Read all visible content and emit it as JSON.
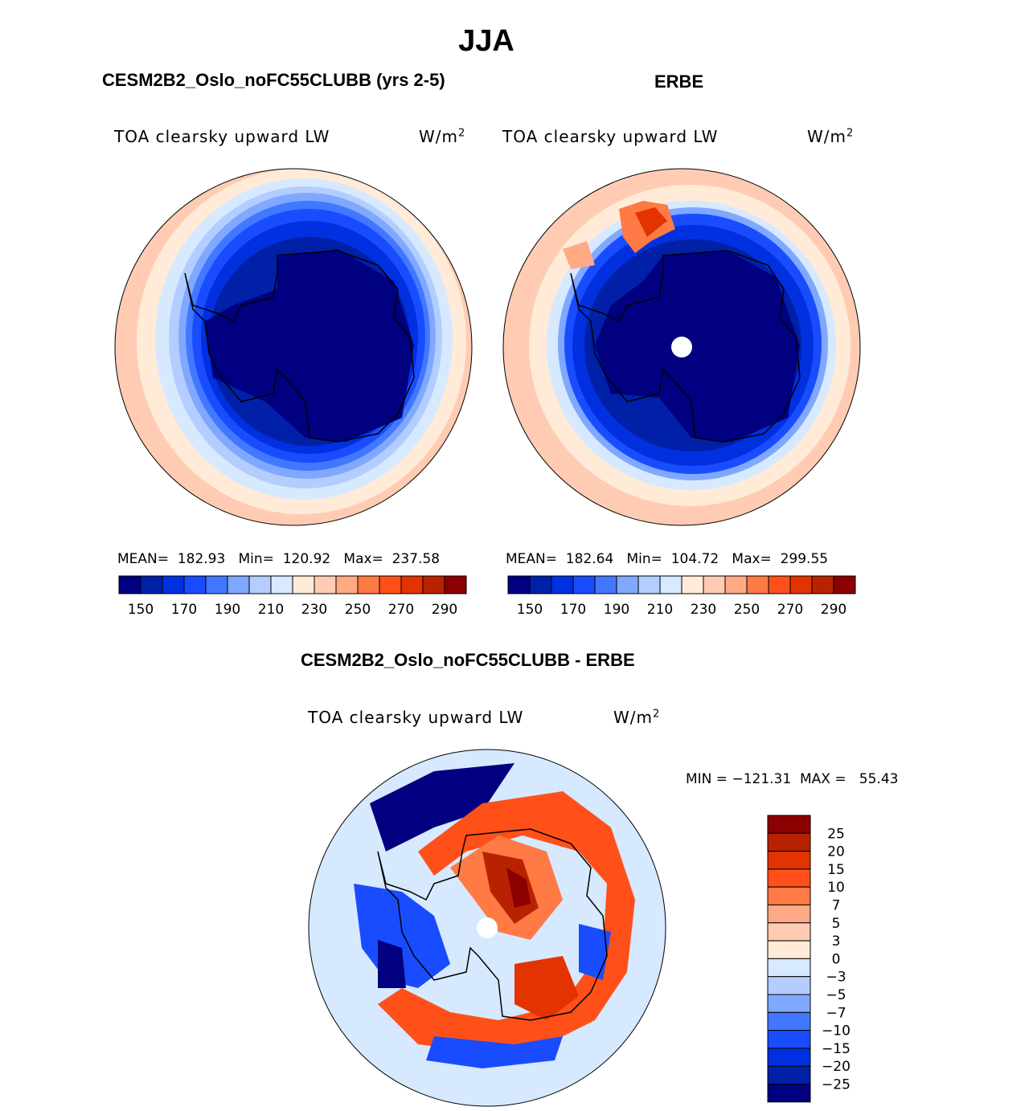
{
  "figure_title": "JJA",
  "panels": [
    {
      "title": "CESM2B2_Oslo_noFC55CLUBB (yrs 2-5)",
      "variable": "TOA clearsky upward LW",
      "units": "W/m",
      "units_exp": "2",
      "stats": "MEAN=  182.93   Min=  120.92   Max=  237.58",
      "mean": 182.93,
      "min": 120.92,
      "max": 237.58
    },
    {
      "title": "ERBE",
      "variable": "TOA clearsky upward LW",
      "units": "W/m",
      "units_exp": "2",
      "stats": "MEAN=  182.64   Min=  104.72   Max=  299.55",
      "mean": 182.64,
      "min": 104.72,
      "max": 299.55
    },
    {
      "title": "CESM2B2_Oslo_noFC55CLUBB - ERBE",
      "variable": "TOA clearsky upward LW",
      "units": "W/m",
      "units_exp": "2",
      "stats": "MIN = −121.31  MAX =   55.43",
      "min": -121.31,
      "max": 55.43
    }
  ],
  "chart_data": [
    {
      "type": "heatmap",
      "projection": "south-polar-stereographic",
      "colors": [
        "#000080",
        "#0020A8",
        "#0030E0",
        "#1A4CFF",
        "#4178FF",
        "#80A8FF",
        "#B4CDFF",
        "#D6E9FF",
        "#FFEBD8",
        "#FFCCB3",
        "#FFAA84",
        "#FF7A44",
        "#FF5019",
        "#E23300",
        "#B82200",
        "#8B0000"
      ],
      "levels": [
        140,
        150,
        160,
        170,
        180,
        190,
        200,
        210,
        220,
        230,
        240,
        250,
        260,
        270,
        280,
        290
      ],
      "tick_labels": [
        "150",
        "170",
        "190",
        "210",
        "230",
        "250",
        "270",
        "290"
      ]
    },
    {
      "type": "heatmap",
      "projection": "south-polar-stereographic",
      "levels_diff": [
        -25,
        -20,
        -15,
        -10,
        -7,
        -5,
        -3,
        0,
        3,
        5,
        7,
        10,
        15,
        20,
        25
      ],
      "diff_labels": [
        "25",
        "20",
        "15",
        "10",
        "7",
        "5",
        "3",
        "0",
        "−3",
        "−5",
        "−7",
        "−10",
        "−15",
        "−20",
        "−25"
      ]
    }
  ]
}
